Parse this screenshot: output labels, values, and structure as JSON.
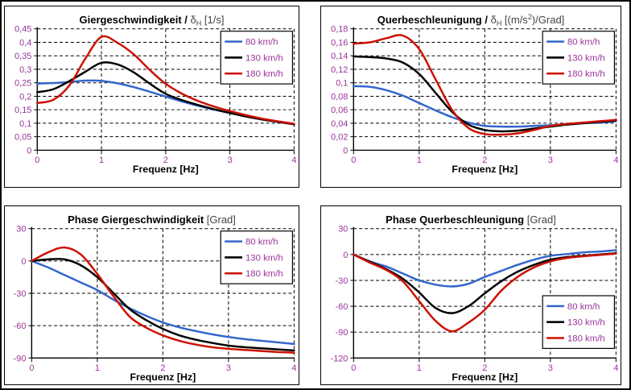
{
  "colors": {
    "tick_label": "#993399",
    "axis": "#000000",
    "grid": "#000000",
    "series_blue": "#3366CC",
    "series_black": "#000000",
    "series_red": "#CC1100"
  },
  "chart_data": [
    {
      "type": "line",
      "title": {
        "prefix": "Giergeschwindigkeit / ",
        "symbol": "δ",
        "subscript": "H",
        "unit1": " [1/s]",
        "sup": "",
        "unit2": ""
      },
      "xlabel": "Frequenz [Hz]",
      "xlim": [
        0,
        4
      ],
      "ylim": [
        0,
        0.45
      ],
      "grid_v": [
        1,
        2,
        3,
        4
      ],
      "xticks": [
        {
          "v": 0,
          "label": "0"
        },
        {
          "v": 1,
          "label": "1"
        },
        {
          "v": 2,
          "label": "2"
        },
        {
          "v": 3,
          "label": "3"
        },
        {
          "v": 4,
          "label": "4"
        }
      ],
      "yticks": [
        {
          "v": 0.45,
          "label": "0,45"
        },
        {
          "v": 0.4,
          "label": "0,4"
        },
        {
          "v": 0.35,
          "label": "0,35"
        },
        {
          "v": 0.3,
          "label": "0,3"
        },
        {
          "v": 0.25,
          "label": "0,25"
        },
        {
          "v": 0.2,
          "label": "0,2"
        },
        {
          "v": 0.15,
          "label": "0,15"
        },
        {
          "v": 0.1,
          "label": "0,1"
        },
        {
          "v": 0.05,
          "label": "0,05"
        },
        {
          "v": 0,
          "label": "0"
        }
      ],
      "legend": {
        "position": "top-right",
        "entries": [
          {
            "label": "80 km/h",
            "color": "#3366CC"
          },
          {
            "label": "130 km/h",
            "color": "#000000"
          },
          {
            "label": "180 km/h",
            "color": "#CC1100"
          }
        ]
      },
      "x": [
        0,
        0.25,
        0.5,
        0.75,
        1,
        1.25,
        1.5,
        1.75,
        2,
        2.25,
        2.5,
        2.75,
        3,
        3.25,
        3.5,
        3.75,
        4
      ],
      "series": [
        {
          "name": "80 km/h",
          "color": "#3366CC",
          "values": [
            0.247,
            0.249,
            0.253,
            0.258,
            0.257,
            0.248,
            0.234,
            0.217,
            0.199,
            0.181,
            0.165,
            0.151,
            0.138,
            0.126,
            0.115,
            0.106,
            0.097
          ]
        },
        {
          "name": "130 km/h",
          "color": "#000000",
          "values": [
            0.215,
            0.226,
            0.256,
            0.291,
            0.324,
            0.318,
            0.289,
            0.247,
            0.209,
            0.186,
            0.168,
            0.152,
            0.138,
            0.125,
            0.114,
            0.105,
            0.096
          ]
        },
        {
          "name": "180 km/h",
          "color": "#CC1100",
          "values": [
            0.175,
            0.187,
            0.24,
            0.34,
            0.42,
            0.398,
            0.356,
            0.298,
            0.246,
            0.21,
            0.183,
            0.162,
            0.145,
            0.13,
            0.117,
            0.107,
            0.098
          ]
        }
      ]
    },
    {
      "type": "line",
      "title": {
        "prefix": "Querbeschleunigung / ",
        "symbol": "δ",
        "subscript": "H",
        "unit1": " [(m/s",
        "sup": "2",
        "unit2": ")/Grad]"
      },
      "xlabel": "Frequenz [Hz]",
      "xlim": [
        0,
        4
      ],
      "ylim": [
        0,
        0.18
      ],
      "grid_v": [
        1,
        2,
        3,
        4
      ],
      "xticks": [
        {
          "v": 0,
          "label": "0"
        },
        {
          "v": 1,
          "label": "1"
        },
        {
          "v": 2,
          "label": "2"
        },
        {
          "v": 3,
          "label": "3"
        },
        {
          "v": 4,
          "label": "4"
        }
      ],
      "yticks": [
        {
          "v": 0.18,
          "label": "0,18"
        },
        {
          "v": 0.16,
          "label": "0,16"
        },
        {
          "v": 0.14,
          "label": "0,14"
        },
        {
          "v": 0.12,
          "label": "0,12"
        },
        {
          "v": 0.1,
          "label": "0,1"
        },
        {
          "v": 0.08,
          "label": "0,08"
        },
        {
          "v": 0.06,
          "label": "0,06"
        },
        {
          "v": 0.04,
          "label": "0,04"
        },
        {
          "v": 0.02,
          "label": "0,02"
        },
        {
          "v": 0,
          "label": "0"
        }
      ],
      "legend": {
        "position": "top-right",
        "entries": [
          {
            "label": "80 km/h",
            "color": "#3366CC"
          },
          {
            "label": "130 km/h",
            "color": "#000000"
          },
          {
            "label": "180 km/h",
            "color": "#CC1100"
          }
        ]
      },
      "x": [
        0,
        0.25,
        0.5,
        0.75,
        1,
        1.25,
        1.5,
        1.75,
        2,
        2.25,
        2.5,
        2.75,
        3,
        3.25,
        3.5,
        3.75,
        4
      ],
      "series": [
        {
          "name": "80 km/h",
          "color": "#3366CC",
          "values": [
            0.095,
            0.094,
            0.089,
            0.081,
            0.07,
            0.059,
            0.049,
            0.041,
            0.036,
            0.035,
            0.035,
            0.036,
            0.037,
            0.038,
            0.04,
            0.041,
            0.043
          ]
        },
        {
          "name": "130 km/h",
          "color": "#000000",
          "values": [
            0.139,
            0.138,
            0.136,
            0.13,
            0.113,
            0.085,
            0.057,
            0.038,
            0.03,
            0.028,
            0.029,
            0.032,
            0.035,
            0.038,
            0.04,
            0.042,
            0.044
          ]
        },
        {
          "name": "180 km/h",
          "color": "#CC1100",
          "values": [
            0.158,
            0.16,
            0.166,
            0.17,
            0.15,
            0.105,
            0.06,
            0.033,
            0.024,
            0.023,
            0.025,
            0.03,
            0.036,
            0.039,
            0.041,
            0.043,
            0.045
          ]
        }
      ]
    },
    {
      "type": "line",
      "title": {
        "prefix": "Phase Giergeschwindigkeit",
        "symbol": "",
        "subscript": "",
        "unit1": " [Grad]",
        "sup": "",
        "unit2": ""
      },
      "xlabel": "Frequenz [Hz]",
      "xlim": [
        0,
        4
      ],
      "ylim": [
        -90,
        30
      ],
      "grid_v": [
        1,
        2,
        3,
        4
      ],
      "xticks": [
        {
          "v": 0,
          "label": "0"
        },
        {
          "v": 1,
          "label": "1"
        },
        {
          "v": 2,
          "label": "2"
        },
        {
          "v": 3,
          "label": "3"
        },
        {
          "v": 4,
          "label": "4"
        }
      ],
      "yticks": [
        {
          "v": 30,
          "label": "30"
        },
        {
          "v": 0,
          "label": "0"
        },
        {
          "v": -30,
          "label": "-30"
        },
        {
          "v": -60,
          "label": "-60"
        },
        {
          "v": -90,
          "label": "-90"
        }
      ],
      "legend": {
        "position": "top-right",
        "entries": [
          {
            "label": "80 km/h",
            "color": "#3366CC"
          },
          {
            "label": "130 km/h",
            "color": "#000000"
          },
          {
            "label": "180 km/h",
            "color": "#CC1100"
          }
        ]
      },
      "x": [
        0,
        0.25,
        0.5,
        0.75,
        1,
        1.25,
        1.5,
        1.75,
        2,
        2.25,
        2.5,
        2.75,
        3,
        3.25,
        3.5,
        3.75,
        4
      ],
      "series": [
        {
          "name": "80 km/h",
          "color": "#3366CC",
          "values": [
            0,
            -6,
            -13,
            -20,
            -27,
            -36,
            -44,
            -51,
            -57,
            -61.5,
            -65,
            -68,
            -70.5,
            -72.5,
            -74,
            -75.5,
            -77
          ]
        },
        {
          "name": "130 km/h",
          "color": "#000000",
          "values": [
            0,
            1.5,
            1.5,
            -4,
            -15,
            -30,
            -45,
            -55,
            -63,
            -69,
            -73,
            -76,
            -78.5,
            -80,
            -81,
            -82,
            -83
          ]
        },
        {
          "name": "180 km/h",
          "color": "#CC1100",
          "values": [
            0,
            8,
            12.5,
            6,
            -12,
            -33,
            -52,
            -62,
            -69,
            -74,
            -77.5,
            -80,
            -81.5,
            -82.5,
            -83.5,
            -84.5,
            -85
          ]
        }
      ]
    },
    {
      "type": "line",
      "title": {
        "prefix": "Phase Querbeschleunigung",
        "symbol": "",
        "subscript": "",
        "unit1": " [Grad]",
        "sup": "",
        "unit2": ""
      },
      "xlabel": "Frequenz [Hz]",
      "xlim": [
        0,
        4
      ],
      "ylim": [
        -120,
        30
      ],
      "grid_v": [
        1,
        2,
        3,
        4
      ],
      "xticks": [
        {
          "v": 0,
          "label": "0"
        },
        {
          "v": 1,
          "label": "1"
        },
        {
          "v": 2,
          "label": "2"
        },
        {
          "v": 3,
          "label": "3"
        },
        {
          "v": 4,
          "label": "4"
        }
      ],
      "yticks": [
        {
          "v": 30,
          "label": "30"
        },
        {
          "v": 0,
          "label": "0"
        },
        {
          "v": -30,
          "label": "-30"
        },
        {
          "v": -60,
          "label": "-60"
        },
        {
          "v": -90,
          "label": "-90"
        },
        {
          "v": -120,
          "label": "-120"
        }
      ],
      "legend": {
        "position": "bottom-right",
        "entries": [
          {
            "label": "80 km/h",
            "color": "#3366CC"
          },
          {
            "label": "130 km/h",
            "color": "#000000"
          },
          {
            "label": "180 km/h",
            "color": "#CC1100"
          }
        ]
      },
      "x": [
        0,
        0.25,
        0.5,
        0.75,
        1,
        1.25,
        1.5,
        1.75,
        2,
        2.25,
        2.5,
        2.75,
        3,
        3.25,
        3.5,
        3.75,
        4
      ],
      "series": [
        {
          "name": "80 km/h",
          "color": "#3366CC",
          "values": [
            0,
            -8,
            -14,
            -22,
            -30,
            -35,
            -37,
            -34,
            -26,
            -19,
            -12,
            -6,
            -1.5,
            0.5,
            2.5,
            3.5,
            5
          ]
        },
        {
          "name": "130 km/h",
          "color": "#000000",
          "values": [
            0,
            -8.5,
            -17,
            -28,
            -44,
            -62,
            -68,
            -60,
            -45,
            -31,
            -20,
            -12,
            -6,
            -3,
            -1.5,
            0,
            1.5
          ]
        },
        {
          "name": "180 km/h",
          "color": "#CC1100",
          "values": [
            0,
            -9.5,
            -18,
            -31,
            -54,
            -77,
            -89,
            -79,
            -64,
            -42,
            -26,
            -15,
            -8,
            -4,
            -2,
            -0.5,
            1
          ]
        }
      ]
    }
  ]
}
